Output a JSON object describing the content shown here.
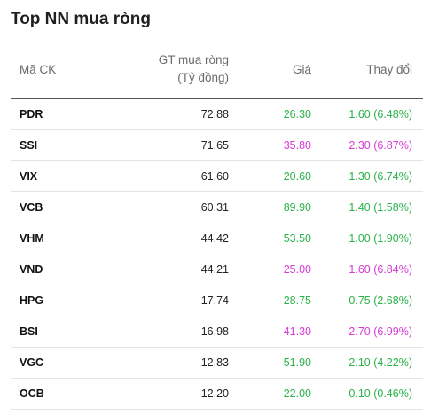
{
  "widget": {
    "title": "Top NN mua ròng"
  },
  "table": {
    "headers": {
      "code": "Mã CK",
      "gt_line1": "GT mua ròng",
      "gt_line2": "(Tỷ đồng)",
      "price": "Giá",
      "change": "Thay đổi"
    },
    "colors": {
      "up": "#2ab24a",
      "ceiling": "#d63ad6"
    },
    "rows": [
      {
        "code": "PDR",
        "value": "72.88",
        "price": "26.30",
        "change": "1.60 (6.48%)",
        "status": "up"
      },
      {
        "code": "SSI",
        "value": "71.65",
        "price": "35.80",
        "change": "2.30 (6.87%)",
        "status": "ceiling"
      },
      {
        "code": "VIX",
        "value": "61.60",
        "price": "20.60",
        "change": "1.30 (6.74%)",
        "status": "up"
      },
      {
        "code": "VCB",
        "value": "60.31",
        "price": "89.90",
        "change": "1.40 (1.58%)",
        "status": "up"
      },
      {
        "code": "VHM",
        "value": "44.42",
        "price": "53.50",
        "change": "1.00 (1.90%)",
        "status": "up"
      },
      {
        "code": "VND",
        "value": "44.21",
        "price": "25.00",
        "change": "1.60 (6.84%)",
        "status": "ceiling"
      },
      {
        "code": "HPG",
        "value": "17.74",
        "price": "28.75",
        "change": "0.75 (2.68%)",
        "status": "up"
      },
      {
        "code": "BSI",
        "value": "16.98",
        "price": "41.30",
        "change": "2.70 (6.99%)",
        "status": "ceiling"
      },
      {
        "code": "VGC",
        "value": "12.83",
        "price": "51.90",
        "change": "2.10 (4.22%)",
        "status": "up"
      },
      {
        "code": "OCB",
        "value": "12.20",
        "price": "22.00",
        "change": "0.10 (0.46%)",
        "status": "up"
      }
    ]
  }
}
